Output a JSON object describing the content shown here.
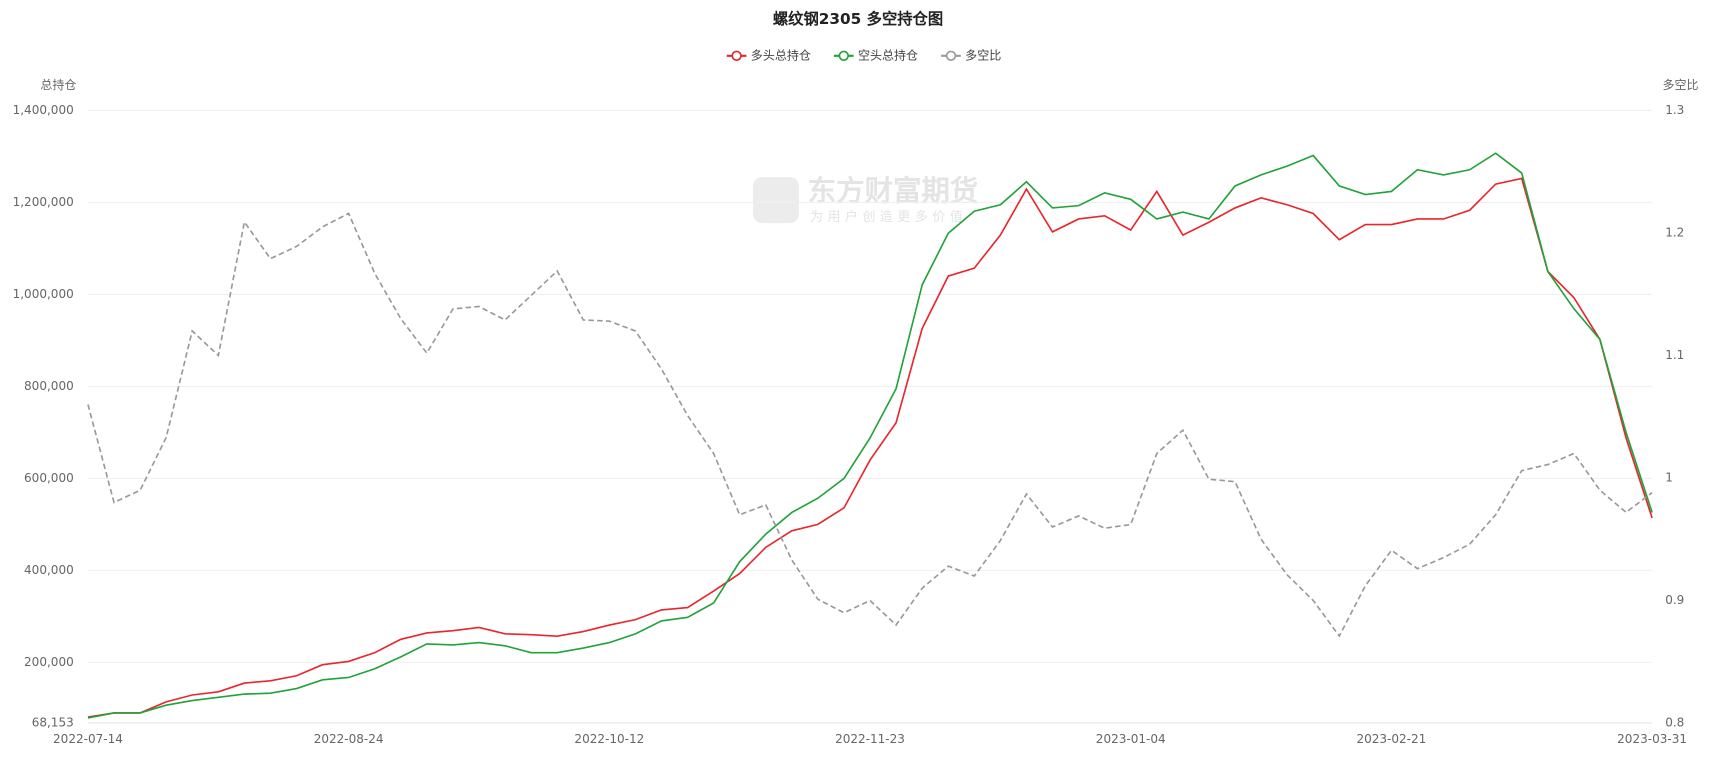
{
  "chart_data": {
    "type": "line",
    "title": "螺纹钢2305 多空持仓图",
    "watermark": "东方财富期货",
    "watermark_sub": "为用户创造更多价值",
    "y_label": "总持仓",
    "y2_label": "多空比",
    "categories": [
      "2022-07-14",
      null,
      null,
      null,
      null,
      null,
      null,
      null,
      null,
      null,
      "2022-08-24",
      null,
      null,
      null,
      null,
      null,
      null,
      null,
      null,
      null,
      "2022-10-12",
      null,
      null,
      null,
      null,
      null,
      null,
      null,
      null,
      null,
      "2022-11-23",
      null,
      null,
      null,
      null,
      null,
      null,
      null,
      null,
      null,
      "2023-01-04",
      null,
      null,
      null,
      null,
      null,
      null,
      null,
      null,
      null,
      "2023-02-21",
      null,
      null,
      null,
      null,
      null,
      null,
      null,
      null,
      null,
      "2023-03-31"
    ],
    "series": [
      {
        "name": "多头总持仓",
        "color": "#e8262d",
        "dashed": false,
        "values": [
          81000,
          90000,
          90000,
          114000,
          129000,
          136000,
          155000,
          160000,
          171000,
          195000,
          202000,
          221000,
          250000,
          264000,
          269000,
          276000,
          262000,
          260000,
          257000,
          267000,
          281000,
          293000,
          314000,
          319000,
          355000,
          393000,
          450000,
          486000,
          500000,
          536000,
          640000,
          721000,
          926000,
          1040000,
          1057000,
          1129000,
          1229000,
          1136000,
          1164000,
          1171000,
          1140000,
          1224000,
          1129000,
          1157000,
          1188000,
          1210000,
          1195000,
          1176000,
          1119000,
          1152000,
          1152000,
          1164000,
          1164000,
          1183000,
          1240000,
          1252000,
          1050000,
          993000,
          902000,
          688000,
          514000
        ]
      },
      {
        "name": "空头总持仓",
        "color": "#22a33a",
        "dashed": false,
        "values": [
          79000,
          90000,
          90000,
          107000,
          117000,
          124000,
          131000,
          133000,
          143000,
          162000,
          167000,
          186000,
          212000,
          240000,
          238000,
          243000,
          236000,
          221000,
          221000,
          231000,
          243000,
          262000,
          290000,
          298000,
          329000,
          419000,
          479000,
          526000,
          557000,
          600000,
          688000,
          795000,
          1021000,
          1133000,
          1181000,
          1195000,
          1245000,
          1188000,
          1193000,
          1221000,
          1207000,
          1164000,
          1179000,
          1164000,
          1236000,
          1260000,
          1279000,
          1302000,
          1236000,
          1217000,
          1224000,
          1271000,
          1260000,
          1271000,
          1307000,
          1264000,
          1050000,
          969000,
          902000,
          700000,
          526000
        ]
      },
      {
        "name": "多空比",
        "color": "#999999",
        "dashed": true,
        "axis": "y2",
        "values": [
          1.06,
          0.98,
          0.99,
          1.033,
          1.12,
          1.1,
          1.209,
          1.179,
          1.189,
          1.205,
          1.216,
          1.167,
          1.13,
          1.102,
          1.138,
          1.14,
          1.129,
          1.149,
          1.169,
          1.129,
          1.128,
          1.12,
          1.089,
          1.051,
          1.02,
          0.97,
          0.978,
          0.933,
          0.901,
          0.89,
          0.9,
          0.88,
          0.91,
          0.928,
          0.92,
          0.949,
          0.987,
          0.96,
          0.969,
          0.959,
          0.962,
          1.02,
          1.039,
          0.999,
          0.997,
          0.95,
          0.921,
          0.9,
          0.871,
          0.912,
          0.941,
          0.926,
          0.935,
          0.946,
          0.97,
          1.006,
          1.011,
          1.02,
          0.99,
          0.972,
          0.988
        ]
      }
    ],
    "ylim": [
      68153,
      1400000
    ],
    "yticks": [
      {
        "value": 68153,
        "label": "68,153"
      },
      {
        "value": 200000,
        "label": "200,000"
      },
      {
        "value": 400000,
        "label": "400,000"
      },
      {
        "value": 600000,
        "label": "600,000"
      },
      {
        "value": 800000,
        "label": "800,000"
      },
      {
        "value": 1000000,
        "label": "1,000,000"
      },
      {
        "value": 1200000,
        "label": "1,200,000"
      },
      {
        "value": 1400000,
        "label": "1,400,000"
      }
    ],
    "y2lim": [
      0.8,
      1.3
    ],
    "y2ticks": [
      0.8,
      0.9,
      1,
      1.1,
      1.2,
      1.3
    ],
    "grid": true
  }
}
